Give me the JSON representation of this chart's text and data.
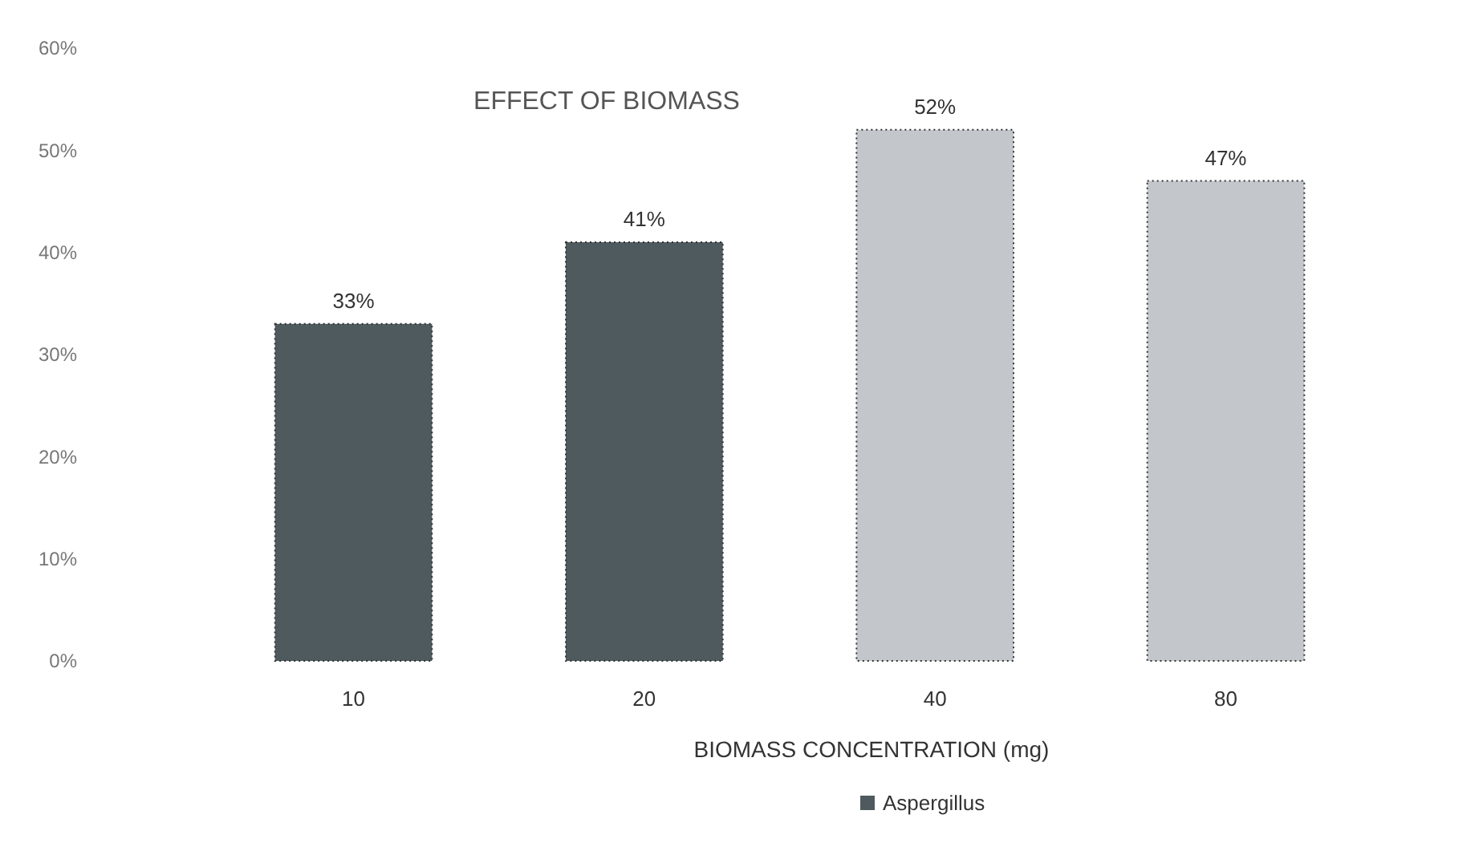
{
  "chart_data": {
    "type": "bar",
    "title": "EFFECT OF BIOMASS",
    "xlabel": "BIOMASS CONCENTRATION (mg)",
    "categories": [
      "10",
      "20",
      "40",
      "80"
    ],
    "series": [
      {
        "name": "Aspergillus",
        "color": "#4f5a5e",
        "colors": [
          "#4f5a5e",
          "#4f5a5e",
          "#c3c7cb",
          "#c3c7cb"
        ],
        "values": [
          33,
          41,
          52,
          47
        ],
        "value_labels": [
          "33%",
          "41%",
          "52%",
          "47%"
        ]
      }
    ],
    "ylim": [
      0,
      60
    ],
    "yticks": [
      {
        "value": 0,
        "label": "0%"
      },
      {
        "value": 10,
        "label": "10%"
      },
      {
        "value": 20,
        "label": "20%"
      },
      {
        "value": 30,
        "label": "30%"
      },
      {
        "value": 40,
        "label": "40%"
      },
      {
        "value": 50,
        "label": "50%"
      },
      {
        "value": 60,
        "label": "60%"
      }
    ],
    "grid": false,
    "legend": "bottom"
  }
}
